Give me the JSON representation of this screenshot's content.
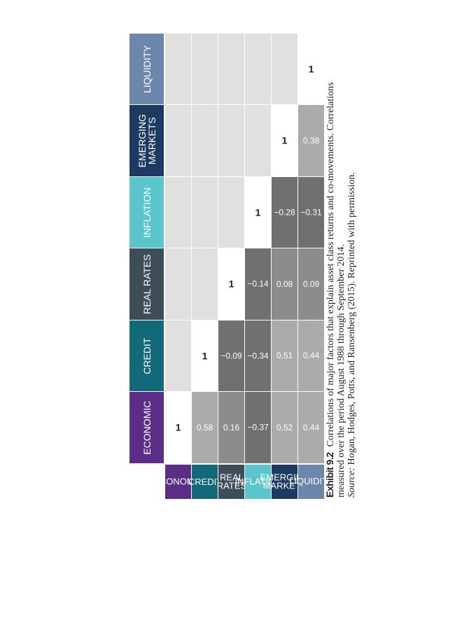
{
  "factors": [
    {
      "label": "ECONOMIC",
      "color": "#5b2d86"
    },
    {
      "label": "CREDIT",
      "color": "#11697a"
    },
    {
      "label": "REAL RATES",
      "color": "#3d4e59"
    },
    {
      "label": "INFLATION",
      "color": "#5ac5cc"
    },
    {
      "label": "EMERGING\nMARKETS",
      "color": "#1d3a63"
    },
    {
      "label": "LIQUIDITY",
      "color": "#6d86ab"
    }
  ],
  "correlations": [
    [
      "1",
      "",
      "",
      "",
      "",
      ""
    ],
    [
      "0.58",
      "1",
      "",
      "",
      "",
      ""
    ],
    [
      "0.16",
      "−0.09",
      "1",
      "",
      "",
      ""
    ],
    [
      "−0.37",
      "−0.34",
      "−0.14",
      "1",
      "",
      ""
    ],
    [
      "0.52",
      "0.51",
      "0.08",
      "−0.28",
      "1",
      ""
    ],
    [
      "0.44",
      "0.44",
      "0.09",
      "−0.31",
      "0.38",
      "1"
    ]
  ],
  "colors": {
    "upper_blank": "#e0e0e0",
    "diagonal": "#ffffff",
    "light": "#ababab",
    "mid": "#8c8c8c",
    "dark": "#707070"
  },
  "caption": {
    "label": "Exhibit 9.2",
    "text": "Correlations of major factors that explain asset class returns and co-movements. Correlations measured over the period August 1988 through September 2014.",
    "source_label": "Source:",
    "source_text": "Hogan, Hodges, Potts, and Ransenberg (2015). Reprinted with permission."
  }
}
